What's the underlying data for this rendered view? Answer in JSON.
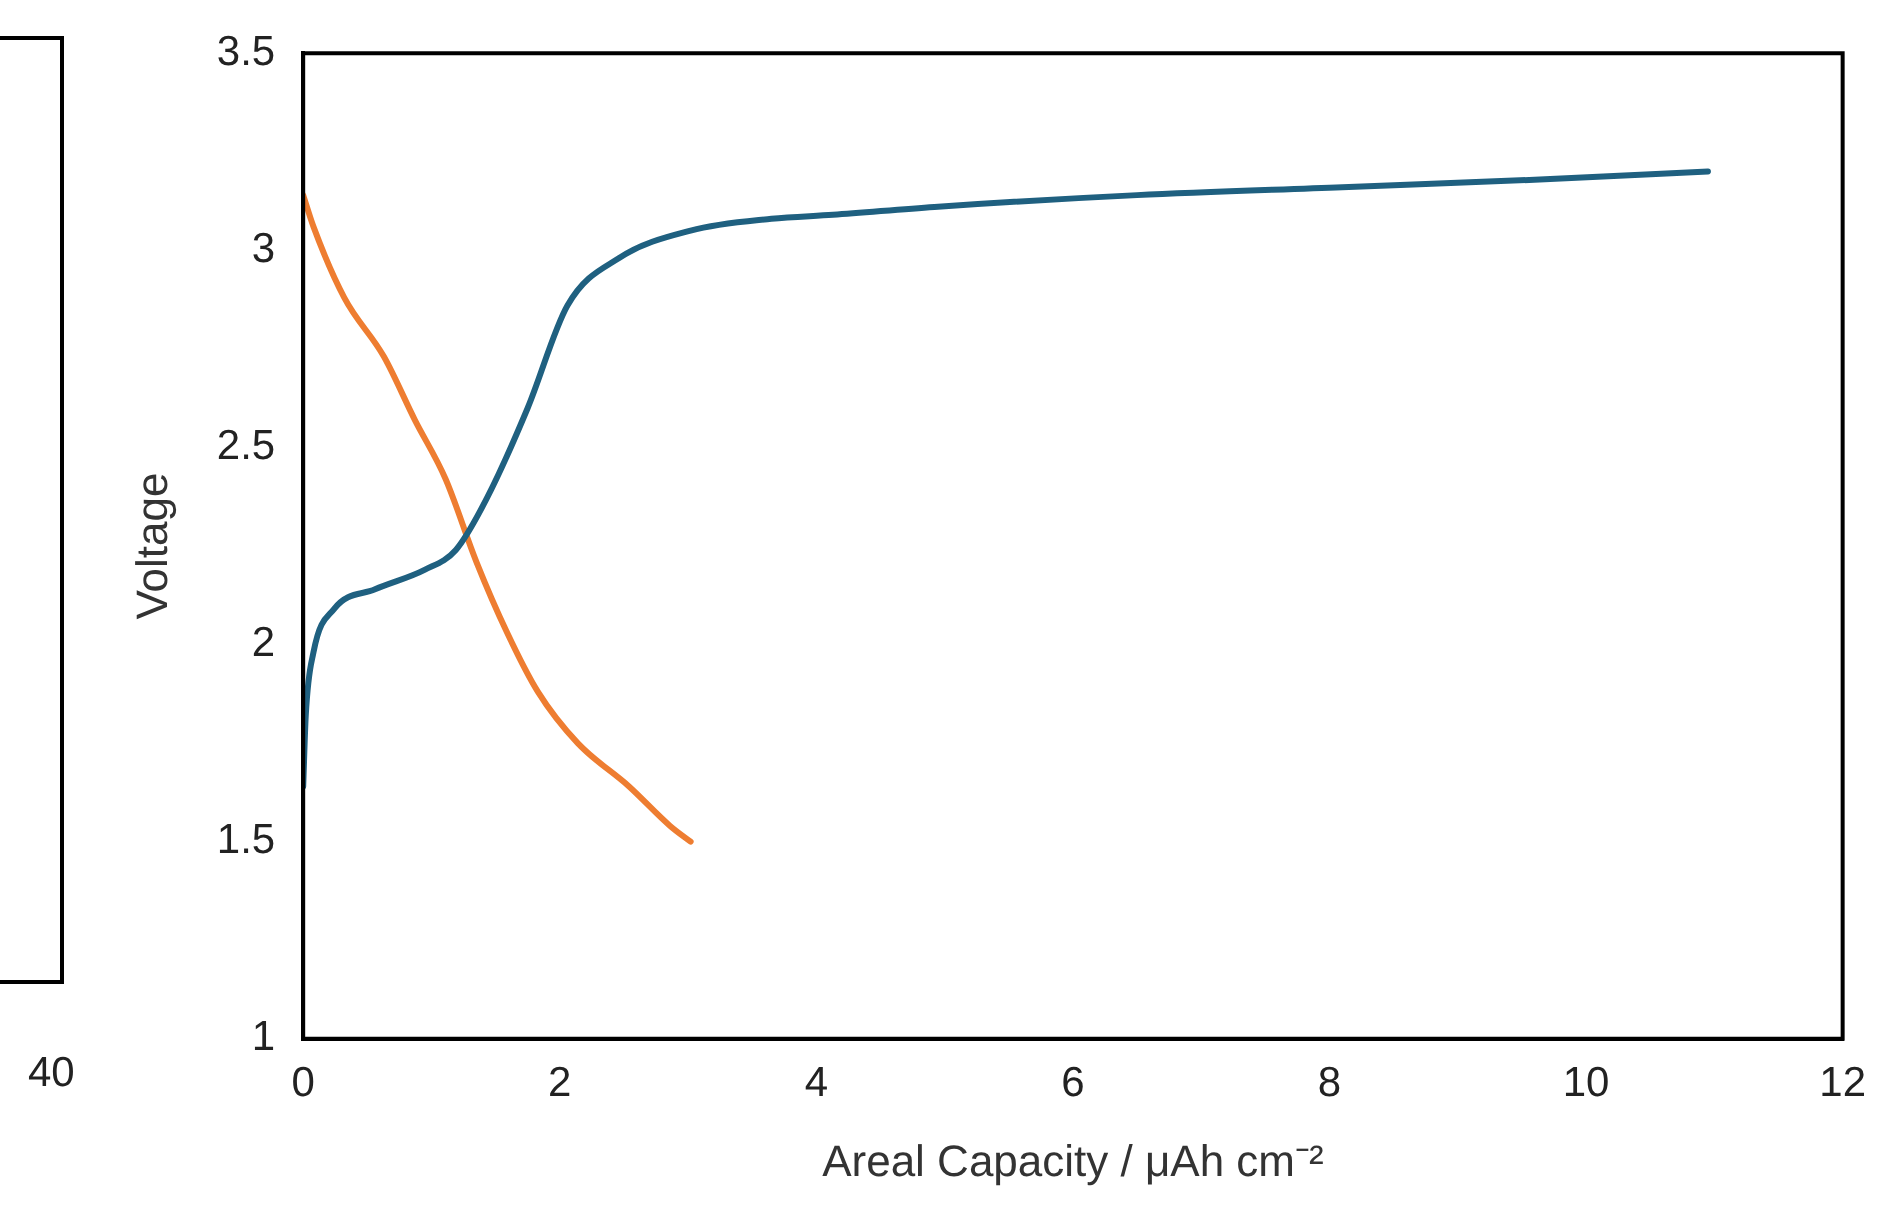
{
  "chart_data": {
    "type": "line",
    "xlabel": "Areal Capacity / μAh cm⁻²",
    "ylabel": "Voltage",
    "xlim": [
      0,
      12
    ],
    "xticks": [
      0,
      2,
      4,
      6,
      8,
      10,
      12
    ],
    "ylim": [
      1,
      3.5
    ],
    "yticks": [
      1,
      1.5,
      2,
      2.5,
      3,
      3.5
    ],
    "grid": false,
    "legend": false,
    "marker": "none",
    "line_style": "solid",
    "annotations": [
      "40"
    ],
    "series": [
      {
        "color": "#1f6080",
        "x": [
          0,
          0.02,
          0.08,
          0.24,
          0.56,
          0.95,
          1.19,
          1.43,
          1.75,
          2.06,
          2.46,
          3.02,
          3.65,
          4.13,
          4.92,
          6.5,
          8.1,
          9.68,
          10.95
        ],
        "values": [
          1.64,
          1.82,
          1.98,
          2.09,
          2.14,
          2.19,
          2.24,
          2.37,
          2.6,
          2.86,
          2.98,
          3.05,
          3.08,
          3.09,
          3.11,
          3.14,
          3.16,
          3.18,
          3.2
        ]
      },
      {
        "color": "#ee7d31",
        "x": [
          0,
          0.08,
          0.32,
          0.63,
          0.87,
          1.11,
          1.35,
          1.59,
          1.83,
          2.14,
          2.54,
          2.86,
          3.02
        ],
        "values": [
          3.14,
          3.06,
          2.88,
          2.73,
          2.57,
          2.42,
          2.21,
          2.03,
          1.88,
          1.75,
          1.64,
          1.54,
          1.5
        ]
      }
    ]
  }
}
